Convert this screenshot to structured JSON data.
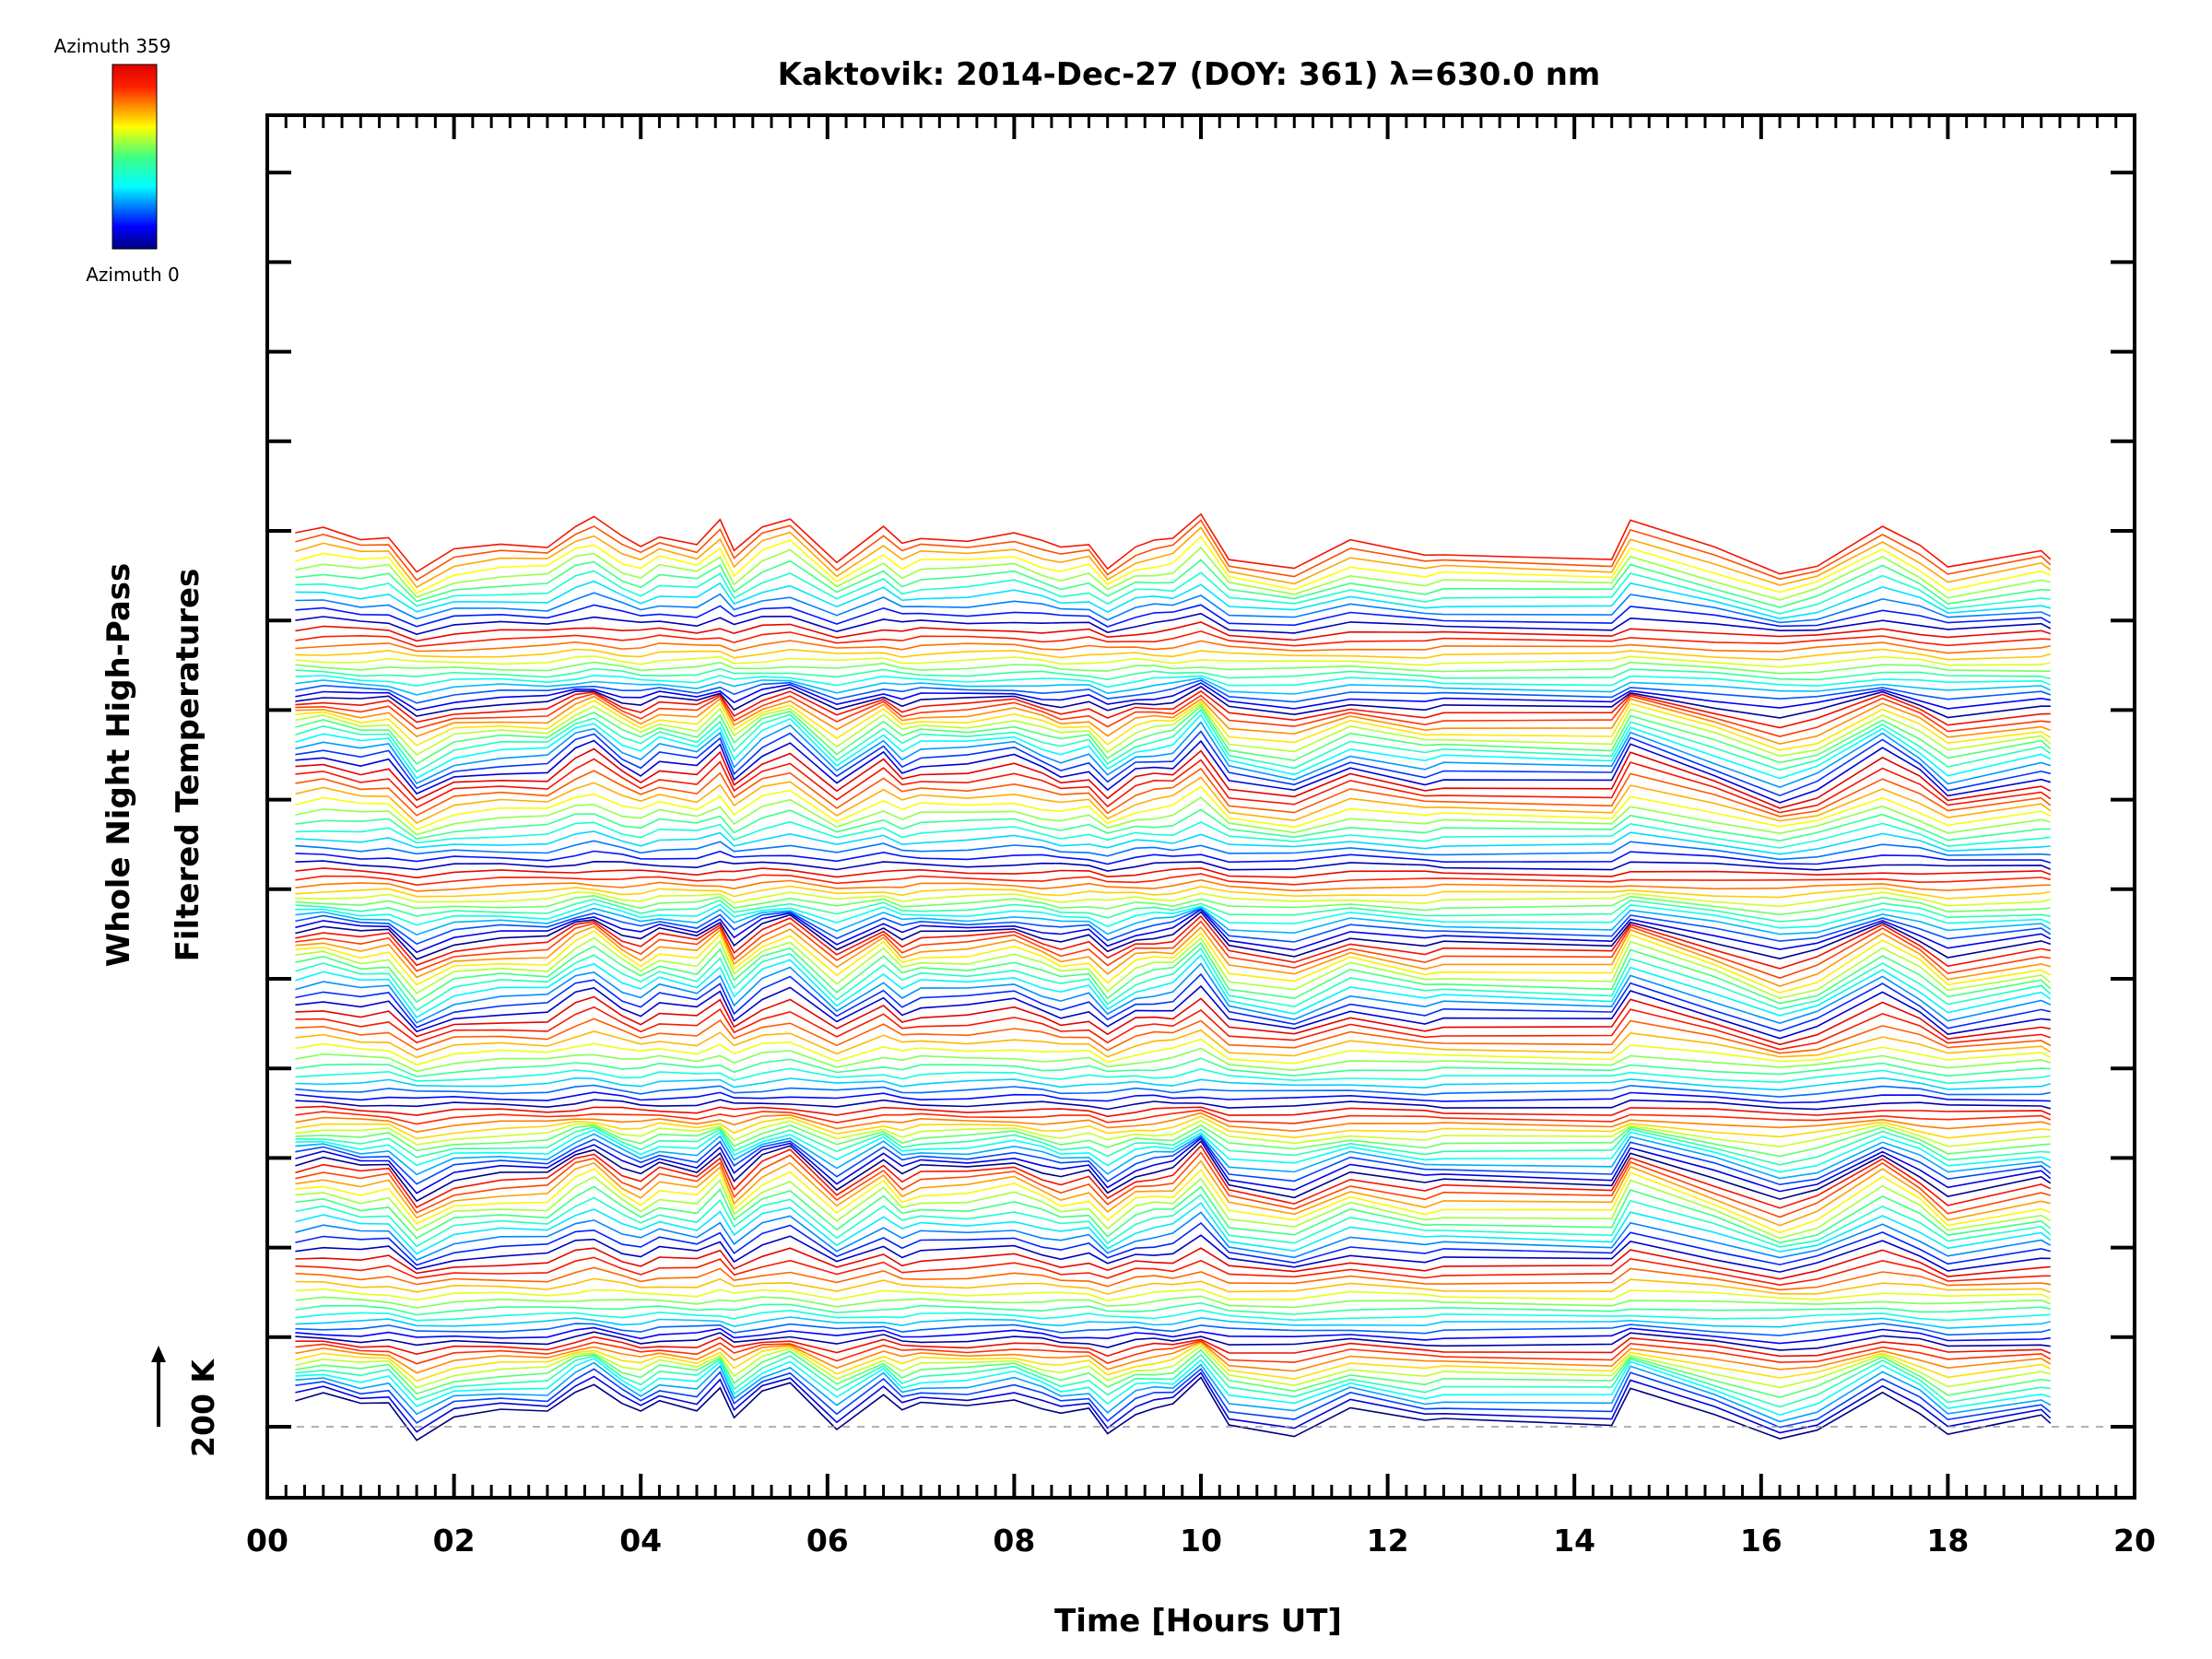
{
  "chart_data": {
    "type": "line",
    "title": "Kaktovik: 2014-Dec-27 (DOY: 361) λ=630.0 nm",
    "xlabel": "Time [Hours UT]",
    "ylabel_line1": "Whole Night High-Pass",
    "ylabel_line2": "Filtered Temperatures",
    "xlim": [
      0,
      20
    ],
    "xticks": [
      "00",
      "02",
      "04",
      "06",
      "08",
      "10",
      "12",
      "14",
      "16",
      "18",
      "20"
    ],
    "scale_bar_label": "200 K",
    "colorbar": {
      "top_label": "Azimuth 359",
      "bottom_label": "Azimuth 0"
    },
    "n_azimuth_series": 128,
    "profile_times": [
      0.3,
      0.6,
      1.0,
      1.3,
      1.6,
      2.0,
      2.5,
      3.0,
      3.3,
      3.5,
      3.8,
      4.0,
      4.2,
      4.6,
      4.85,
      5.0,
      5.3,
      5.6,
      6.1,
      6.6,
      6.8,
      7.0,
      7.5,
      8.0,
      8.3,
      8.5,
      8.8,
      9.0,
      9.3,
      9.5,
      9.7,
      10.0,
      10.3,
      11.0,
      11.6,
      12.4,
      12.6,
      14.4,
      14.6,
      15.5,
      16.2,
      16.6,
      17.3,
      17.7,
      18.0,
      19.0,
      19.1
    ],
    "profile_values": [
      14,
      17,
      12,
      14,
      -6,
      5,
      8,
      8,
      20,
      24,
      12,
      7,
      14,
      10,
      22,
      4,
      18,
      24,
      0,
      18,
      8,
      12,
      12,
      16,
      10,
      6,
      9,
      -3,
      8,
      10,
      11,
      26,
      2,
      -4,
      10,
      2,
      4,
      2,
      22,
      6,
      -8,
      -2,
      20,
      8,
      -5,
      5,
      2
    ]
  }
}
